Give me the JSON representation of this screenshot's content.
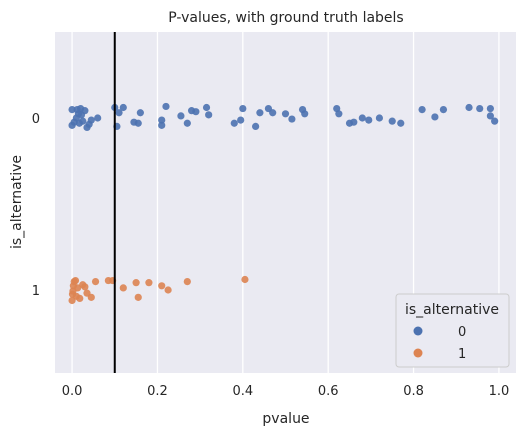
{
  "chart_data": {
    "type": "scatter",
    "title": "P-values, with ground truth labels",
    "xlabel": "pvalue",
    "ylabel": "is_alternative",
    "xlim": [
      -0.04,
      1.04
    ],
    "xticks": [
      0.0,
      0.2,
      0.4,
      0.6,
      0.8,
      1.0
    ],
    "xtick_labels": [
      "0.0",
      "0.2",
      "0.4",
      "0.6",
      "0.8",
      "1.0"
    ],
    "categories": [
      "0",
      "1"
    ],
    "grid": true,
    "threshold_line": 0.1,
    "legend": {
      "title": "is_alternative",
      "position": "lower-right",
      "entries": [
        "0",
        "1"
      ]
    },
    "series": [
      {
        "name": "0",
        "color": "#4c72b0",
        "points": [
          {
            "x": 0.0,
            "jitter": 0.08
          },
          {
            "x": 0.0,
            "jitter": -0.07
          },
          {
            "x": 0.005,
            "jitter": -0.04
          },
          {
            "x": 0.01,
            "jitter": 0.0
          },
          {
            "x": 0.012,
            "jitter": 0.08
          },
          {
            "x": 0.015,
            "jitter": 0.04
          },
          {
            "x": 0.017,
            "jitter": -0.05
          },
          {
            "x": 0.02,
            "jitter": 0.09
          },
          {
            "x": 0.022,
            "jitter": 0.03
          },
          {
            "x": 0.025,
            "jitter": -0.03
          },
          {
            "x": 0.03,
            "jitter": 0.07
          },
          {
            "x": 0.035,
            "jitter": -0.09
          },
          {
            "x": 0.04,
            "jitter": -0.06
          },
          {
            "x": 0.045,
            "jitter": -0.02
          },
          {
            "x": 0.06,
            "jitter": 0.0
          },
          {
            "x": 0.1,
            "jitter": 0.1
          },
          {
            "x": 0.105,
            "jitter": -0.08
          },
          {
            "x": 0.11,
            "jitter": 0.05
          },
          {
            "x": 0.12,
            "jitter": 0.1
          },
          {
            "x": 0.145,
            "jitter": -0.04
          },
          {
            "x": 0.155,
            "jitter": -0.05
          },
          {
            "x": 0.16,
            "jitter": 0.05
          },
          {
            "x": 0.21,
            "jitter": -0.02
          },
          {
            "x": 0.21,
            "jitter": -0.07
          },
          {
            "x": 0.22,
            "jitter": 0.11
          },
          {
            "x": 0.255,
            "jitter": 0.02
          },
          {
            "x": 0.27,
            "jitter": -0.05
          },
          {
            "x": 0.28,
            "jitter": 0.07
          },
          {
            "x": 0.29,
            "jitter": 0.06
          },
          {
            "x": 0.315,
            "jitter": 0.1
          },
          {
            "x": 0.32,
            "jitter": 0.03
          },
          {
            "x": 0.38,
            "jitter": -0.05
          },
          {
            "x": 0.395,
            "jitter": -0.02
          },
          {
            "x": 0.4,
            "jitter": 0.09
          },
          {
            "x": 0.43,
            "jitter": -0.08
          },
          {
            "x": 0.44,
            "jitter": 0.05
          },
          {
            "x": 0.46,
            "jitter": 0.09
          },
          {
            "x": 0.47,
            "jitter": 0.05
          },
          {
            "x": 0.5,
            "jitter": 0.04
          },
          {
            "x": 0.515,
            "jitter": -0.01
          },
          {
            "x": 0.54,
            "jitter": 0.08
          },
          {
            "x": 0.545,
            "jitter": 0.04
          },
          {
            "x": 0.62,
            "jitter": 0.09
          },
          {
            "x": 0.625,
            "jitter": 0.04
          },
          {
            "x": 0.65,
            "jitter": -0.05
          },
          {
            "x": 0.66,
            "jitter": -0.04
          },
          {
            "x": 0.68,
            "jitter": 0.0
          },
          {
            "x": 0.695,
            "jitter": -0.02
          },
          {
            "x": 0.72,
            "jitter": 0.0
          },
          {
            "x": 0.75,
            "jitter": -0.03
          },
          {
            "x": 0.77,
            "jitter": -0.05
          },
          {
            "x": 0.82,
            "jitter": 0.08
          },
          {
            "x": 0.85,
            "jitter": 0.01
          },
          {
            "x": 0.87,
            "jitter": 0.08
          },
          {
            "x": 0.93,
            "jitter": 0.1
          },
          {
            "x": 0.955,
            "jitter": 0.09
          },
          {
            "x": 0.98,
            "jitter": 0.09
          },
          {
            "x": 0.98,
            "jitter": 0.02
          },
          {
            "x": 0.99,
            "jitter": -0.03
          }
        ]
      },
      {
        "name": "1",
        "color": "#dd8452",
        "points": [
          {
            "x": 0.0,
            "jitter": -0.1
          },
          {
            "x": 0.001,
            "jitter": -0.04
          },
          {
            "x": 0.002,
            "jitter": -0.01
          },
          {
            "x": 0.003,
            "jitter": 0.04
          },
          {
            "x": 0.005,
            "jitter": 0.08
          },
          {
            "x": 0.008,
            "jitter": 0.09
          },
          {
            "x": 0.01,
            "jitter": -0.06
          },
          {
            "x": 0.013,
            "jitter": 0.02
          },
          {
            "x": 0.018,
            "jitter": -0.08
          },
          {
            "x": 0.025,
            "jitter": 0.05
          },
          {
            "x": 0.03,
            "jitter": 0.03
          },
          {
            "x": 0.035,
            "jitter": -0.03
          },
          {
            "x": 0.045,
            "jitter": -0.07
          },
          {
            "x": 0.055,
            "jitter": 0.08
          },
          {
            "x": 0.085,
            "jitter": 0.09
          },
          {
            "x": 0.095,
            "jitter": 0.09
          },
          {
            "x": 0.12,
            "jitter": 0.02
          },
          {
            "x": 0.15,
            "jitter": 0.07
          },
          {
            "x": 0.155,
            "jitter": -0.07
          },
          {
            "x": 0.18,
            "jitter": 0.07
          },
          {
            "x": 0.21,
            "jitter": 0.04
          },
          {
            "x": 0.225,
            "jitter": 0.0
          },
          {
            "x": 0.27,
            "jitter": 0.08
          },
          {
            "x": 0.405,
            "jitter": 0.1
          }
        ]
      }
    ]
  }
}
